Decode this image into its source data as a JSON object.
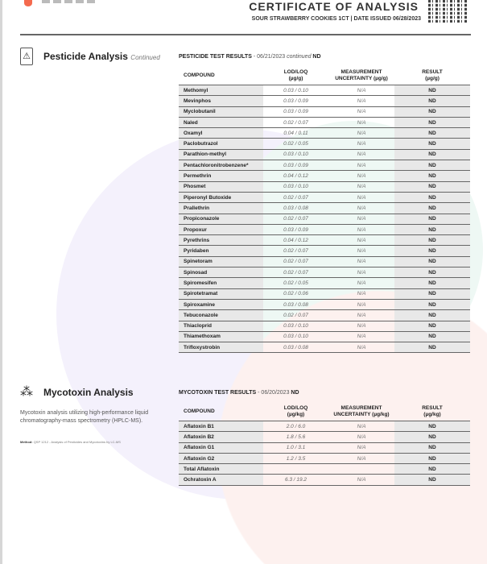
{
  "header": {
    "title": "CERTIFICATE OF ANALYSIS",
    "subtitle": "SOUR STRAWBERRY COOKIES 1CT | DATE ISSUED 06/28/2023",
    "accent": "#f46a4e"
  },
  "pesticide": {
    "title": "Pesticide Analysis",
    "continued": "Continued",
    "icon": "warning-canister-icon",
    "results_label": "PESTICIDE TEST RESULTS",
    "results_date": "- 06/21/2023",
    "results_continued": "continued",
    "results_status": "ND",
    "columns": [
      "COMPOUND",
      "LOD/LOQ\n(µg/g)",
      "MEASUREMENT\nUNCERTAINTY (µg/g)",
      "RESULT\n(µg/g)"
    ],
    "rows": [
      [
        "Methomyl",
        "0.03 / 0.10",
        "N/A",
        "ND"
      ],
      [
        "Mevinphos",
        "0.03 / 0.09",
        "N/A",
        "ND"
      ],
      [
        "Myclobutanil",
        "0.03 / 0.09",
        "N/A",
        "ND"
      ],
      [
        "Naled",
        "0.02 / 0.07",
        "N/A",
        "ND"
      ],
      [
        "Oxamyl",
        "0.04 / 0.11",
        "N/A",
        "ND"
      ],
      [
        "Paclobutrazol",
        "0.02 / 0.05",
        "N/A",
        "ND"
      ],
      [
        "Parathion-methyl",
        "0.03 / 0.10",
        "N/A",
        "ND"
      ],
      [
        "Pentachloronitrobenzene*",
        "0.03 / 0.09",
        "N/A",
        "ND"
      ],
      [
        "Permethrin",
        "0.04 / 0.12",
        "N/A",
        "ND"
      ],
      [
        "Phosmet",
        "0.03 / 0.10",
        "N/A",
        "ND"
      ],
      [
        "Piperonyl Butoxide",
        "0.02 / 0.07",
        "N/A",
        "ND"
      ],
      [
        "Prallethrin",
        "0.03 / 0.08",
        "N/A",
        "ND"
      ],
      [
        "Propiconazole",
        "0.02 / 0.07",
        "N/A",
        "ND"
      ],
      [
        "Propoxur",
        "0.03 / 0.09",
        "N/A",
        "ND"
      ],
      [
        "Pyrethrins",
        "0.04 / 0.12",
        "N/A",
        "ND"
      ],
      [
        "Pyridaben",
        "0.02 / 0.07",
        "N/A",
        "ND"
      ],
      [
        "Spinetoram",
        "0.02 / 0.07",
        "N/A",
        "ND"
      ],
      [
        "Spinosad",
        "0.02 / 0.07",
        "N/A",
        "ND"
      ],
      [
        "Spiromesifen",
        "0.02 / 0.05",
        "N/A",
        "ND"
      ],
      [
        "Spirotetramat",
        "0.02 / 0.06",
        "N/A",
        "ND"
      ],
      [
        "Spiroxamine",
        "0.03 / 0.08",
        "N/A",
        "ND"
      ],
      [
        "Tebuconazole",
        "0.02 / 0.07",
        "N/A",
        "ND"
      ],
      [
        "Thiacloprid",
        "0.03 / 0.10",
        "N/A",
        "ND"
      ],
      [
        "Thiamethoxam",
        "0.03 / 0.10",
        "N/A",
        "ND"
      ],
      [
        "Trifloxystrobin",
        "0.03 / 0.08",
        "N/A",
        "ND"
      ]
    ]
  },
  "mycotoxin": {
    "title": "Mycotoxin Analysis",
    "icon": "mold-spores-icon",
    "description": "Mycotoxin analysis utilizing high-performance liquid chromatography-mass spectrometry (HPLC-MS).",
    "method_label": "Method:",
    "method_text": "QSP 1212 - Analysis of Pesticides and Mycotoxins by LC-MS",
    "results_label": "MYCOTOXIN TEST RESULTS",
    "results_date": "- 06/20/2023",
    "results_status": "ND",
    "columns": [
      "COMPOUND",
      "LOD/LOQ\n(µg/kg)",
      "MEASUREMENT\nUNCERTAINTY (µg/kg)",
      "RESULT\n(µg/kg)"
    ],
    "rows": [
      [
        "Aflatoxin B1",
        "2.0 / 6.0",
        "N/A",
        "ND"
      ],
      [
        "Aflatoxin B2",
        "1.8 / 5.6",
        "N/A",
        "ND"
      ],
      [
        "Aflatoxin G1",
        "1.0 / 3.1",
        "N/A",
        "ND"
      ],
      [
        "Aflatoxin G2",
        "1.2 / 3.5",
        "N/A",
        "ND"
      ],
      [
        "Total Aflatoxin",
        "",
        "",
        "ND"
      ],
      [
        "Ochratoxin A",
        "6.3 / 19.2",
        "N/A",
        "ND"
      ]
    ]
  }
}
